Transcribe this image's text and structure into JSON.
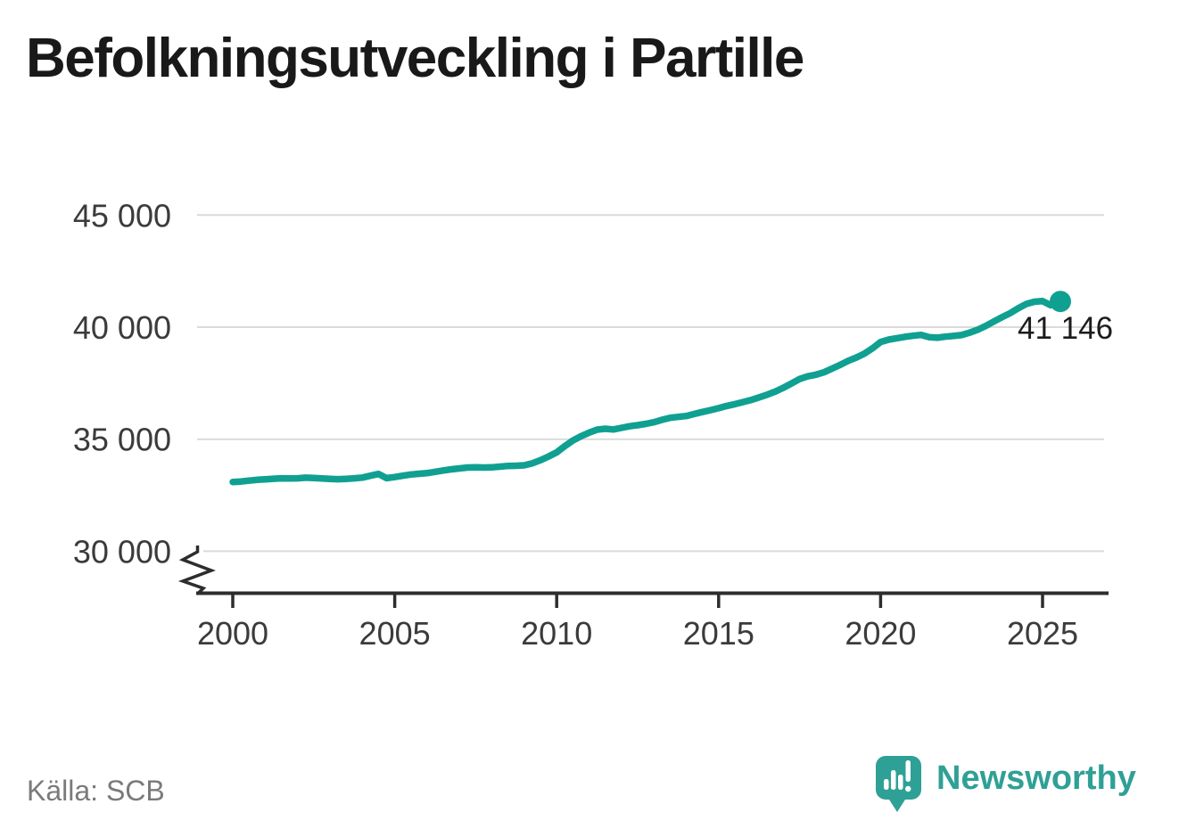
{
  "title": "Befolkningsutveckling i Partille",
  "source": "Källa: SCB",
  "branding": {
    "name": "Newsworthy",
    "icon": "newsworthy-speech-bubble-chart-icon"
  },
  "colors": {
    "line": "#10a091",
    "grid": "#dadada",
    "axis": "#2d2d2d",
    "tick_text": "#3b3b3b",
    "annotation": "#1c1c1c",
    "title": "#191919",
    "source": "#7a7a7a",
    "brand": "#2fa096",
    "background": "#ffffff"
  },
  "chart_data": {
    "type": "line",
    "title": "Befolkningsutveckling i Partille",
    "xlabel": "",
    "ylabel": "",
    "x_range": [
      2000,
      2025.6
    ],
    "y_range_displayed": [
      30000,
      45000
    ],
    "y_axis_break": true,
    "grid": "horizontal",
    "legend": "none",
    "x_ticks": [
      {
        "value": 2000,
        "label": "2000"
      },
      {
        "value": 2005,
        "label": "2005"
      },
      {
        "value": 2010,
        "label": "2010"
      },
      {
        "value": 2015,
        "label": "2015"
      },
      {
        "value": 2020,
        "label": "2020"
      },
      {
        "value": 2025,
        "label": "2025"
      }
    ],
    "y_ticks": [
      {
        "value": 30000,
        "label": "30 000"
      },
      {
        "value": 35000,
        "label": "35 000"
      },
      {
        "value": 40000,
        "label": "40 000"
      },
      {
        "value": 45000,
        "label": "45 000"
      }
    ],
    "latest_label": "41 146",
    "latest_value": 41146,
    "series": [
      {
        "color": "#10a091",
        "points": [
          [
            2000,
            33090
          ],
          [
            2000.25,
            33110
          ],
          [
            2000.5,
            33150
          ],
          [
            2000.75,
            33185
          ],
          [
            2001,
            33210
          ],
          [
            2001.25,
            33235
          ],
          [
            2001.5,
            33255
          ],
          [
            2001.75,
            33245
          ],
          [
            2002,
            33255
          ],
          [
            2002.25,
            33280
          ],
          [
            2002.5,
            33270
          ],
          [
            2002.75,
            33245
          ],
          [
            2003,
            33225
          ],
          [
            2003.25,
            33215
          ],
          [
            2003.5,
            33230
          ],
          [
            2003.75,
            33255
          ],
          [
            2004,
            33285
          ],
          [
            2004.25,
            33370
          ],
          [
            2004.5,
            33450
          ],
          [
            2004.75,
            33260
          ],
          [
            2005,
            33310
          ],
          [
            2005.25,
            33370
          ],
          [
            2005.5,
            33425
          ],
          [
            2005.75,
            33455
          ],
          [
            2006,
            33485
          ],
          [
            2006.25,
            33545
          ],
          [
            2006.5,
            33605
          ],
          [
            2006.75,
            33655
          ],
          [
            2007,
            33695
          ],
          [
            2007.25,
            33735
          ],
          [
            2007.5,
            33745
          ],
          [
            2007.75,
            33735
          ],
          [
            2008,
            33745
          ],
          [
            2008.25,
            33775
          ],
          [
            2008.5,
            33805
          ],
          [
            2008.75,
            33815
          ],
          [
            2009,
            33835
          ],
          [
            2009.25,
            33925
          ],
          [
            2009.5,
            34060
          ],
          [
            2009.75,
            34230
          ],
          [
            2010,
            34410
          ],
          [
            2010.25,
            34690
          ],
          [
            2010.5,
            34940
          ],
          [
            2010.75,
            35130
          ],
          [
            2011,
            35290
          ],
          [
            2011.25,
            35425
          ],
          [
            2011.5,
            35465
          ],
          [
            2011.75,
            35435
          ],
          [
            2012,
            35505
          ],
          [
            2012.25,
            35575
          ],
          [
            2012.5,
            35625
          ],
          [
            2012.75,
            35685
          ],
          [
            2013,
            35755
          ],
          [
            2013.25,
            35865
          ],
          [
            2013.5,
            35955
          ],
          [
            2013.75,
            35995
          ],
          [
            2014,
            36035
          ],
          [
            2014.25,
            36125
          ],
          [
            2014.5,
            36215
          ],
          [
            2014.75,
            36295
          ],
          [
            2015,
            36385
          ],
          [
            2015.25,
            36485
          ],
          [
            2015.5,
            36565
          ],
          [
            2015.75,
            36655
          ],
          [
            2016,
            36745
          ],
          [
            2016.25,
            36865
          ],
          [
            2016.5,
            36985
          ],
          [
            2016.75,
            37125
          ],
          [
            2017,
            37295
          ],
          [
            2017.25,
            37485
          ],
          [
            2017.5,
            37685
          ],
          [
            2017.75,
            37805
          ],
          [
            2018,
            37875
          ],
          [
            2018.25,
            37985
          ],
          [
            2018.5,
            38145
          ],
          [
            2018.75,
            38315
          ],
          [
            2019,
            38495
          ],
          [
            2019.25,
            38645
          ],
          [
            2019.5,
            38815
          ],
          [
            2019.75,
            39055
          ],
          [
            2020,
            39335
          ],
          [
            2020.25,
            39445
          ],
          [
            2020.5,
            39505
          ],
          [
            2020.75,
            39565
          ],
          [
            2021,
            39615
          ],
          [
            2021.25,
            39655
          ],
          [
            2021.5,
            39555
          ],
          [
            2021.75,
            39525
          ],
          [
            2022,
            39575
          ],
          [
            2022.25,
            39605
          ],
          [
            2022.5,
            39645
          ],
          [
            2022.75,
            39755
          ],
          [
            2023,
            39885
          ],
          [
            2023.25,
            40055
          ],
          [
            2023.5,
            40255
          ],
          [
            2023.75,
            40445
          ],
          [
            2024,
            40625
          ],
          [
            2024.25,
            40845
          ],
          [
            2024.5,
            41035
          ],
          [
            2024.75,
            41135
          ],
          [
            2025,
            41160
          ],
          [
            2025.25,
            40980
          ],
          [
            2025.55,
            41146
          ]
        ]
      }
    ]
  }
}
